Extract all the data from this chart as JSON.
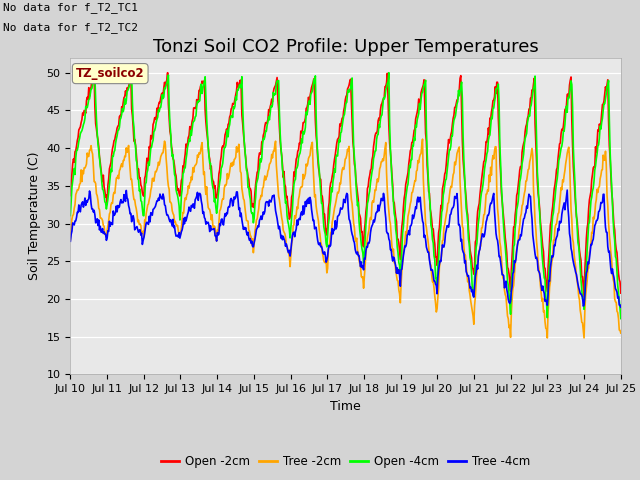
{
  "title": "Tonzi Soil CO2 Profile: Upper Temperatures",
  "xlabel": "Time",
  "ylabel": "Soil Temperature (C)",
  "ylim": [
    10,
    52
  ],
  "yticks": [
    10,
    15,
    20,
    25,
    30,
    35,
    40,
    45,
    50
  ],
  "note1": "No data for f_T2_TC1",
  "note2": "No data for f_T2_TC2",
  "legend_label": "TZ_soilco2",
  "series_labels": [
    "Open -2cm",
    "Tree -2cm",
    "Open -4cm",
    "Tree -4cm"
  ],
  "series_colors": [
    "red",
    "orange",
    "lime",
    "blue"
  ],
  "fig_bg_color": "#d4d4d4",
  "plot_bg_color": "#e8e8e8",
  "title_fontsize": 13,
  "axis_fontsize": 9,
  "tick_fontsize": 8,
  "note_fontsize": 8
}
